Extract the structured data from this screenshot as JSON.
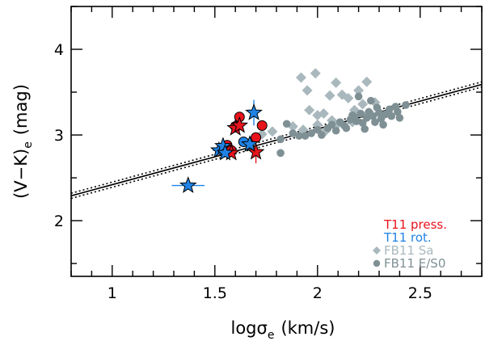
{
  "chart_data": {
    "type": "scatter",
    "xlabel": "logσ",
    "xlabel_sub": "e",
    "xlabel_units": "(km/s)",
    "ylabel": "(V−K)",
    "ylabel_sub": "e",
    "ylabel_units": "(mag)",
    "xlim": [
      0.8,
      2.8
    ],
    "ylim": [
      1.35,
      4.5
    ],
    "x_ticks": [
      {
        "value": 1,
        "label": "1"
      },
      {
        "value": 1.5,
        "label": "1.5"
      },
      {
        "value": 2,
        "label": "2"
      },
      {
        "value": 2.5,
        "label": "2.5"
      }
    ],
    "y_ticks": [
      {
        "value": 2,
        "label": "2"
      },
      {
        "value": 3,
        "label": "3"
      },
      {
        "value": 4,
        "label": "4"
      }
    ],
    "fit": {
      "slope": 0.65,
      "intercept": 1.77,
      "band": 0.03
    },
    "colors": {
      "t11_press": "#e8141c",
      "t11_rot": "#1f83e6",
      "fb11_sa": "#a9b8bd",
      "fb11_es0": "#7f9095"
    },
    "series": [
      {
        "name": "T11 press.",
        "color": "#e8141c",
        "circles": [
          {
            "x": 1.62,
            "y": 3.21,
            "xerr": 0,
            "yerr": 0.05
          },
          {
            "x": 1.6,
            "y": 3.1,
            "xerr": 0,
            "yerr": 0.06
          },
          {
            "x": 1.56,
            "y": 2.88,
            "xerr": 0,
            "yerr": 0.04
          },
          {
            "x": 1.58,
            "y": 2.82,
            "xerr": 0,
            "yerr": 0.04
          },
          {
            "x": 1.7,
            "y": 2.97,
            "xerr": 0,
            "yerr": 0.06
          },
          {
            "x": 1.73,
            "y": 3.11,
            "xerr": 0,
            "yerr": 0.06
          }
        ],
        "stars": [
          {
            "x": 1.58,
            "y": 2.79,
            "xerr": 0,
            "yerr": 0.03
          },
          {
            "x": 1.6,
            "y": 3.08,
            "xerr": 0,
            "yerr": 0.05
          },
          {
            "x": 1.62,
            "y": 3.11,
            "xerr": 0,
            "yerr": 0.06
          },
          {
            "x": 1.7,
            "y": 2.8,
            "xerr": 0,
            "yerr": 0.13
          }
        ]
      },
      {
        "name": "T11 rot.",
        "color": "#1f83e6",
        "circles": [
          {
            "x": 1.64,
            "y": 2.92,
            "xerr": 0.02,
            "yerr": 0.03
          }
        ],
        "stars": [
          {
            "x": 1.37,
            "y": 2.41,
            "xerr": 0.08,
            "yerr": 0.0
          },
          {
            "x": 1.52,
            "y": 2.82,
            "xerr": 0.03,
            "yerr": 0.05
          },
          {
            "x": 1.54,
            "y": 2.87,
            "xerr": 0.03,
            "yerr": 0.04
          },
          {
            "x": 1.55,
            "y": 2.79,
            "xerr": 0.02,
            "yerr": 0.03
          },
          {
            "x": 1.67,
            "y": 2.89,
            "xerr": 0.02,
            "yerr": 0.06
          },
          {
            "x": 1.69,
            "y": 3.26,
            "xerr": 0.02,
            "yerr": 0.15
          }
        ]
      },
      {
        "name": "FB11 Sa",
        "color": "#a9b8bd",
        "points": [
          {
            "x": 1.92,
            "y": 3.67
          },
          {
            "x": 1.99,
            "y": 3.72
          },
          {
            "x": 1.95,
            "y": 3.52
          },
          {
            "x": 1.96,
            "y": 3.29
          },
          {
            "x": 2.0,
            "y": 3.23
          },
          {
            "x": 2.03,
            "y": 3.25
          },
          {
            "x": 2.06,
            "y": 3.46
          },
          {
            "x": 2.09,
            "y": 3.61
          },
          {
            "x": 2.12,
            "y": 3.47
          },
          {
            "x": 2.15,
            "y": 3.43
          },
          {
            "x": 2.18,
            "y": 3.29
          },
          {
            "x": 2.22,
            "y": 3.36
          },
          {
            "x": 2.24,
            "y": 3.62
          },
          {
            "x": 2.17,
            "y": 3.15
          },
          {
            "x": 1.93,
            "y": 3.06
          },
          {
            "x": 1.88,
            "y": 3.1
          },
          {
            "x": 1.78,
            "y": 3.04
          },
          {
            "x": 1.73,
            "y": 3.01
          },
          {
            "x": 2.04,
            "y": 3.05
          },
          {
            "x": 2.1,
            "y": 3.13
          },
          {
            "x": 2.25,
            "y": 3.26
          },
          {
            "x": 2.28,
            "y": 3.38
          },
          {
            "x": 2.07,
            "y": 3.17
          },
          {
            "x": 2.2,
            "y": 3.52
          },
          {
            "x": 2.0,
            "y": 3.12
          }
        ]
      },
      {
        "name": "FB11 E/S0",
        "color": "#7f9095",
        "points": [
          {
            "x": 1.82,
            "y": 2.79
          },
          {
            "x": 1.82,
            "y": 2.95
          },
          {
            "x": 1.85,
            "y": 3.13
          },
          {
            "x": 1.88,
            "y": 3.02
          },
          {
            "x": 1.91,
            "y": 2.99
          },
          {
            "x": 1.94,
            "y": 2.99
          },
          {
            "x": 1.97,
            "y": 3.02
          },
          {
            "x": 2.0,
            "y": 3.06
          },
          {
            "x": 2.02,
            "y": 3.0
          },
          {
            "x": 2.05,
            "y": 3.08
          },
          {
            "x": 2.07,
            "y": 3.12
          },
          {
            "x": 2.09,
            "y": 3.05
          },
          {
            "x": 2.11,
            "y": 3.15
          },
          {
            "x": 2.13,
            "y": 3.11
          },
          {
            "x": 2.14,
            "y": 3.08
          },
          {
            "x": 2.16,
            "y": 3.18
          },
          {
            "x": 2.18,
            "y": 3.21
          },
          {
            "x": 2.19,
            "y": 3.16
          },
          {
            "x": 2.21,
            "y": 3.25
          },
          {
            "x": 2.22,
            "y": 3.14
          },
          {
            "x": 2.24,
            "y": 3.2
          },
          {
            "x": 2.25,
            "y": 3.27
          },
          {
            "x": 2.27,
            "y": 3.22
          },
          {
            "x": 2.28,
            "y": 3.15
          },
          {
            "x": 2.3,
            "y": 3.26
          },
          {
            "x": 2.31,
            "y": 3.19
          },
          {
            "x": 2.33,
            "y": 3.24
          },
          {
            "x": 2.35,
            "y": 3.3
          },
          {
            "x": 2.36,
            "y": 3.22
          },
          {
            "x": 2.38,
            "y": 3.33
          },
          {
            "x": 2.39,
            "y": 3.27
          },
          {
            "x": 2.43,
            "y": 3.35
          },
          {
            "x": 2.2,
            "y": 3.45
          },
          {
            "x": 2.26,
            "y": 3.4
          },
          {
            "x": 2.32,
            "y": 3.12
          },
          {
            "x": 2.23,
            "y": 3.07
          },
          {
            "x": 2.4,
            "y": 3.2
          },
          {
            "x": 2.17,
            "y": 3.23
          },
          {
            "x": 2.29,
            "y": 3.32
          }
        ]
      }
    ],
    "legend": {
      "position": "bottom-right",
      "entries": [
        {
          "label": "T11 press.",
          "color": "#e8141c",
          "marker": "none"
        },
        {
          "label": "T11 rot.",
          "color": "#1f83e6",
          "marker": "none"
        },
        {
          "label": "FB11 Sa",
          "color": "#a9b8bd",
          "marker": "diamond"
        },
        {
          "label": "FB11 E/S0",
          "color": "#7f9095",
          "marker": "circle"
        }
      ]
    }
  }
}
